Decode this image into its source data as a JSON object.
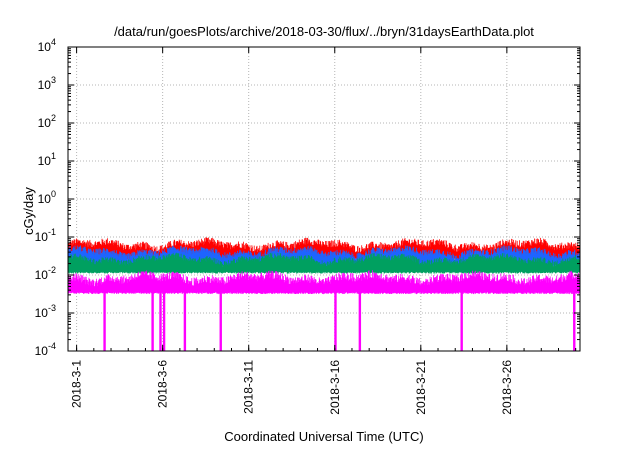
{
  "chart_data": {
    "type": "line",
    "title": "/data/run/goesPlots/archive/2018-03-30/flux/../bryn/31daysEarthData.plot",
    "xlabel": "Coordinated Universal Time (UTC)",
    "ylabel": "cGy/day",
    "yscale": "log",
    "ylim": [
      0.0001,
      10000
    ],
    "yticks": [
      {
        "value": 0.0001,
        "base": "10",
        "exp": "-4"
      },
      {
        "value": 0.001,
        "base": "10",
        "exp": "-3"
      },
      {
        "value": 0.01,
        "base": "10",
        "exp": "-2"
      },
      {
        "value": 0.1,
        "base": "10",
        "exp": "-1"
      },
      {
        "value": 1,
        "base": "10",
        "exp": "0"
      },
      {
        "value": 10,
        "base": "10",
        "exp": "1"
      },
      {
        "value": 100,
        "base": "10",
        "exp": "2"
      },
      {
        "value": 1000,
        "base": "10",
        "exp": "3"
      },
      {
        "value": 10000,
        "base": "10",
        "exp": "4"
      }
    ],
    "xlim": [
      "2018-02-28 12:00",
      "2018-03-30 06:00"
    ],
    "xticks": [
      "2018-3-1",
      "2018-3-6",
      "2018-3-11",
      "2018-3-16",
      "2018-3-21",
      "2018-3-26"
    ],
    "grid": true,
    "series": [
      {
        "color": "#ff0000",
        "base": 0.05,
        "spread": 0.25
      },
      {
        "color": "#1e64ff",
        "base": 0.033,
        "spread": 0.22
      },
      {
        "color": "#00a060",
        "base": 0.022,
        "spread": 0.2
      },
      {
        "color": "#ff00ff",
        "base": 0.0065,
        "spread": 0.28,
        "floor": 0.0035
      }
    ],
    "dropouts": [
      "2018-3-2 15:00",
      "2018-3-5 10:00",
      "2018-3-5 21:00",
      "2018-3-6 02:00",
      "2018-3-7 07:00",
      "2018-3-9 09:00",
      "2018-3-16 01:00",
      "2018-3-17 11:00",
      "2018-3-23 09:00",
      "2018-3-29 22:00"
    ]
  }
}
